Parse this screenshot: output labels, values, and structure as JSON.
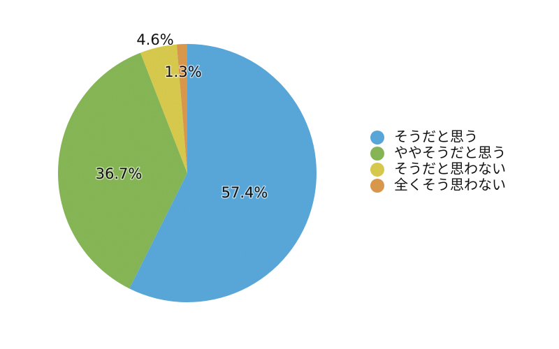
{
  "chart_data": {
    "type": "pie",
    "title": "",
    "start_angle_deg": 0,
    "direction": "clockwise",
    "legend_position": "right",
    "slices": [
      {
        "label": "そうだと思う",
        "value": 57.4,
        "display": "57.4%",
        "color": "#5aa9dc"
      },
      {
        "label": "ややそうだと思う",
        "value": 36.7,
        "display": "36.7%",
        "color": "#88b857"
      },
      {
        "label": "そうだと思わない",
        "value": 4.6,
        "display": "4.6%",
        "color": "#d9cc4e"
      },
      {
        "label": "全くそう思わない",
        "value": 1.3,
        "display": "1.3%",
        "color": "#dc9a4c"
      }
    ]
  }
}
